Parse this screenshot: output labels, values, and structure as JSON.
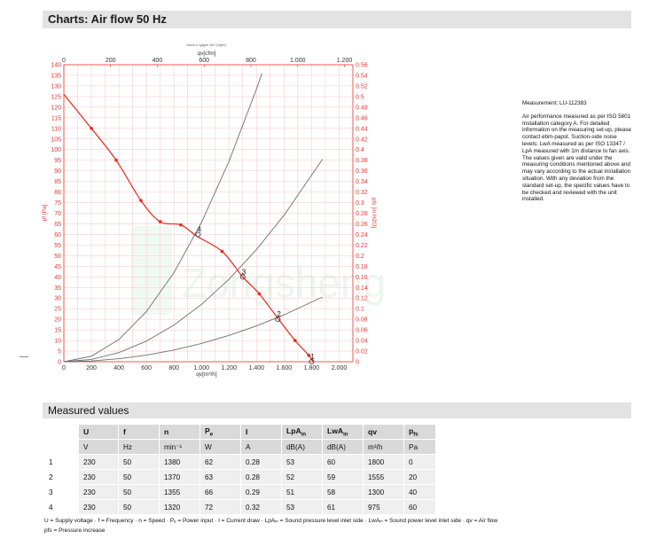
{
  "header": {
    "title": "Charts: Air flow 50 Hz"
  },
  "chart_data": {
    "type": "line",
    "tiny_caption": "Druck p f gegen Vol I (Vgmh)",
    "x_top_label": "qv[cfm]",
    "x_bottom_label": "qv[m³/h]",
    "y_left_label": "pf [Pa]",
    "y_right_label": "pfs [in H2O]",
    "x_bottom_ticks": [
      "0",
      "200",
      "400",
      "600",
      "800",
      "1.000",
      "1.200",
      "1.400",
      "1.600",
      "1.800",
      "2.000"
    ],
    "x_top_ticks": [
      "0",
      "200",
      "400",
      "600",
      "800",
      "1.000",
      "1.200"
    ],
    "y_left_ticks": [
      "0",
      "5",
      "10",
      "15",
      "20",
      "25",
      "30",
      "35",
      "40",
      "45",
      "50",
      "55",
      "60",
      "65",
      "70",
      "75",
      "80",
      "85",
      "90",
      "95",
      "100",
      "105",
      "110",
      "115",
      "120",
      "125",
      "130",
      "135",
      "140"
    ],
    "y_right_ticks": [
      "0",
      "0.02",
      "0.04",
      "0.06",
      "0.08",
      "0.1",
      "0.12",
      "0.14",
      "0.16",
      "0.18",
      "0.2",
      "0.22",
      "0.24",
      "0.26",
      "0.28",
      "0.3",
      "0.32",
      "0.34",
      "0.36",
      "0.38",
      "0.4",
      "0.42",
      "0.44",
      "0.46",
      "0.48",
      "0.5",
      "0.52",
      "0.54",
      "0.56"
    ],
    "xlim": [
      0,
      2100
    ],
    "ylim": [
      0,
      140
    ],
    "fan_curve": {
      "x": [
        0,
        200,
        380,
        560,
        700,
        850,
        970,
        1150,
        1300,
        1420,
        1560,
        1680,
        1780,
        1810
      ],
      "y": [
        126,
        110,
        95,
        76,
        66,
        64.5,
        59,
        52,
        40,
        32,
        20,
        10,
        3,
        0
      ]
    },
    "curve_markers": {
      "x": [
        200,
        380,
        560,
        700,
        850,
        1150,
        1420,
        1680,
        1780
      ],
      "y": [
        110,
        95,
        76,
        66,
        64.5,
        52,
        32,
        10,
        3
      ]
    },
    "system_curves": [
      {
        "x": [
          0,
          200,
          400,
          600,
          800,
          1000,
          1200,
          1400,
          1600,
          1880
        ],
        "y": [
          0,
          0.34,
          1.4,
          3.1,
          5.5,
          8.6,
          12.4,
          16.9,
          22.1,
          30.5
        ]
      },
      {
        "x": [
          0,
          200,
          400,
          600,
          800,
          1000,
          1200,
          1400,
          1600,
          1880
        ],
        "y": [
          0,
          1.1,
          4.3,
          9.7,
          17.3,
          27,
          38.9,
          52.9,
          69.1,
          95.5
        ]
      },
      {
        "x": [
          0,
          200,
          400,
          600,
          800,
          1000,
          1200,
          1400,
          1440
        ],
        "y": [
          0,
          2.6,
          10.5,
          23.6,
          42,
          65.6,
          94.5,
          128.6,
          136
        ]
      }
    ],
    "operating_points": [
      {
        "label": "1",
        "x": 1800,
        "y": 0
      },
      {
        "label": "2",
        "x": 1555,
        "y": 20
      },
      {
        "label": "3",
        "x": 1300,
        "y": 40
      },
      {
        "label": "4",
        "x": 975,
        "y": 60
      }
    ],
    "watermark": "Zongsheng"
  },
  "notes": {
    "measurement": "Measurement: LU-112383",
    "body": "Air performance measured as per ISO 5801 Installation category A. For detailed information on the measuring set-up, please contact ebm-papst. Suction-side noise levels: LwA measured as per ISO 13347 / LpA measured with 1m distance to fan axis. The values given are valid under the measuring conditions mentioned above and may vary according to the actual installation situation. With any deviation from the standard set-up, the specific values have to be checked and reviewed with the unit installed."
  },
  "measured": {
    "title": "Measured values",
    "headers": [
      {
        "main": "U",
        "sub": ""
      },
      {
        "main": "f",
        "sub": ""
      },
      {
        "main": "n",
        "sub": ""
      },
      {
        "main": "P",
        "sub": "e"
      },
      {
        "main": "I",
        "sub": ""
      },
      {
        "main": "LpA",
        "sub": "in"
      },
      {
        "main": "LwA",
        "sub": "in"
      },
      {
        "main": "qv",
        "sub": ""
      },
      {
        "main": "p",
        "sub": "fs"
      }
    ],
    "units": [
      "V",
      "Hz",
      "min⁻¹",
      "W",
      "A",
      "dB(A)",
      "dB(A)",
      "m³/h",
      "Pa"
    ],
    "rows": [
      [
        "1",
        "230",
        "50",
        "1380",
        "62",
        "0.28",
        "53",
        "60",
        "1800",
        "0"
      ],
      [
        "2",
        "230",
        "50",
        "1370",
        "63",
        "0.28",
        "52",
        "59",
        "1555",
        "20"
      ],
      [
        "3",
        "230",
        "50",
        "1355",
        "66",
        "0.29",
        "51",
        "58",
        "1300",
        "40"
      ],
      [
        "4",
        "230",
        "50",
        "1320",
        "72",
        "0.32",
        "53",
        "61",
        "975",
        "60"
      ]
    ],
    "legend1": "U = Supply voltage · f = Frequency · n = Speed · Pₑ = Power input · I = Current draw · LpAᵢₙ = Sound pressure level inlet side · LwAᵢₙ = Sound power level inlet side · qv = Air flow",
    "legend2": "pfs = Pressure increase"
  },
  "colors": {
    "grid_red": "#f3c6c6",
    "axis_red": "#e53935",
    "curve_red": "#e8261c",
    "system_gray": "#6e6e6e",
    "watermark_green": "#3aa55a"
  }
}
